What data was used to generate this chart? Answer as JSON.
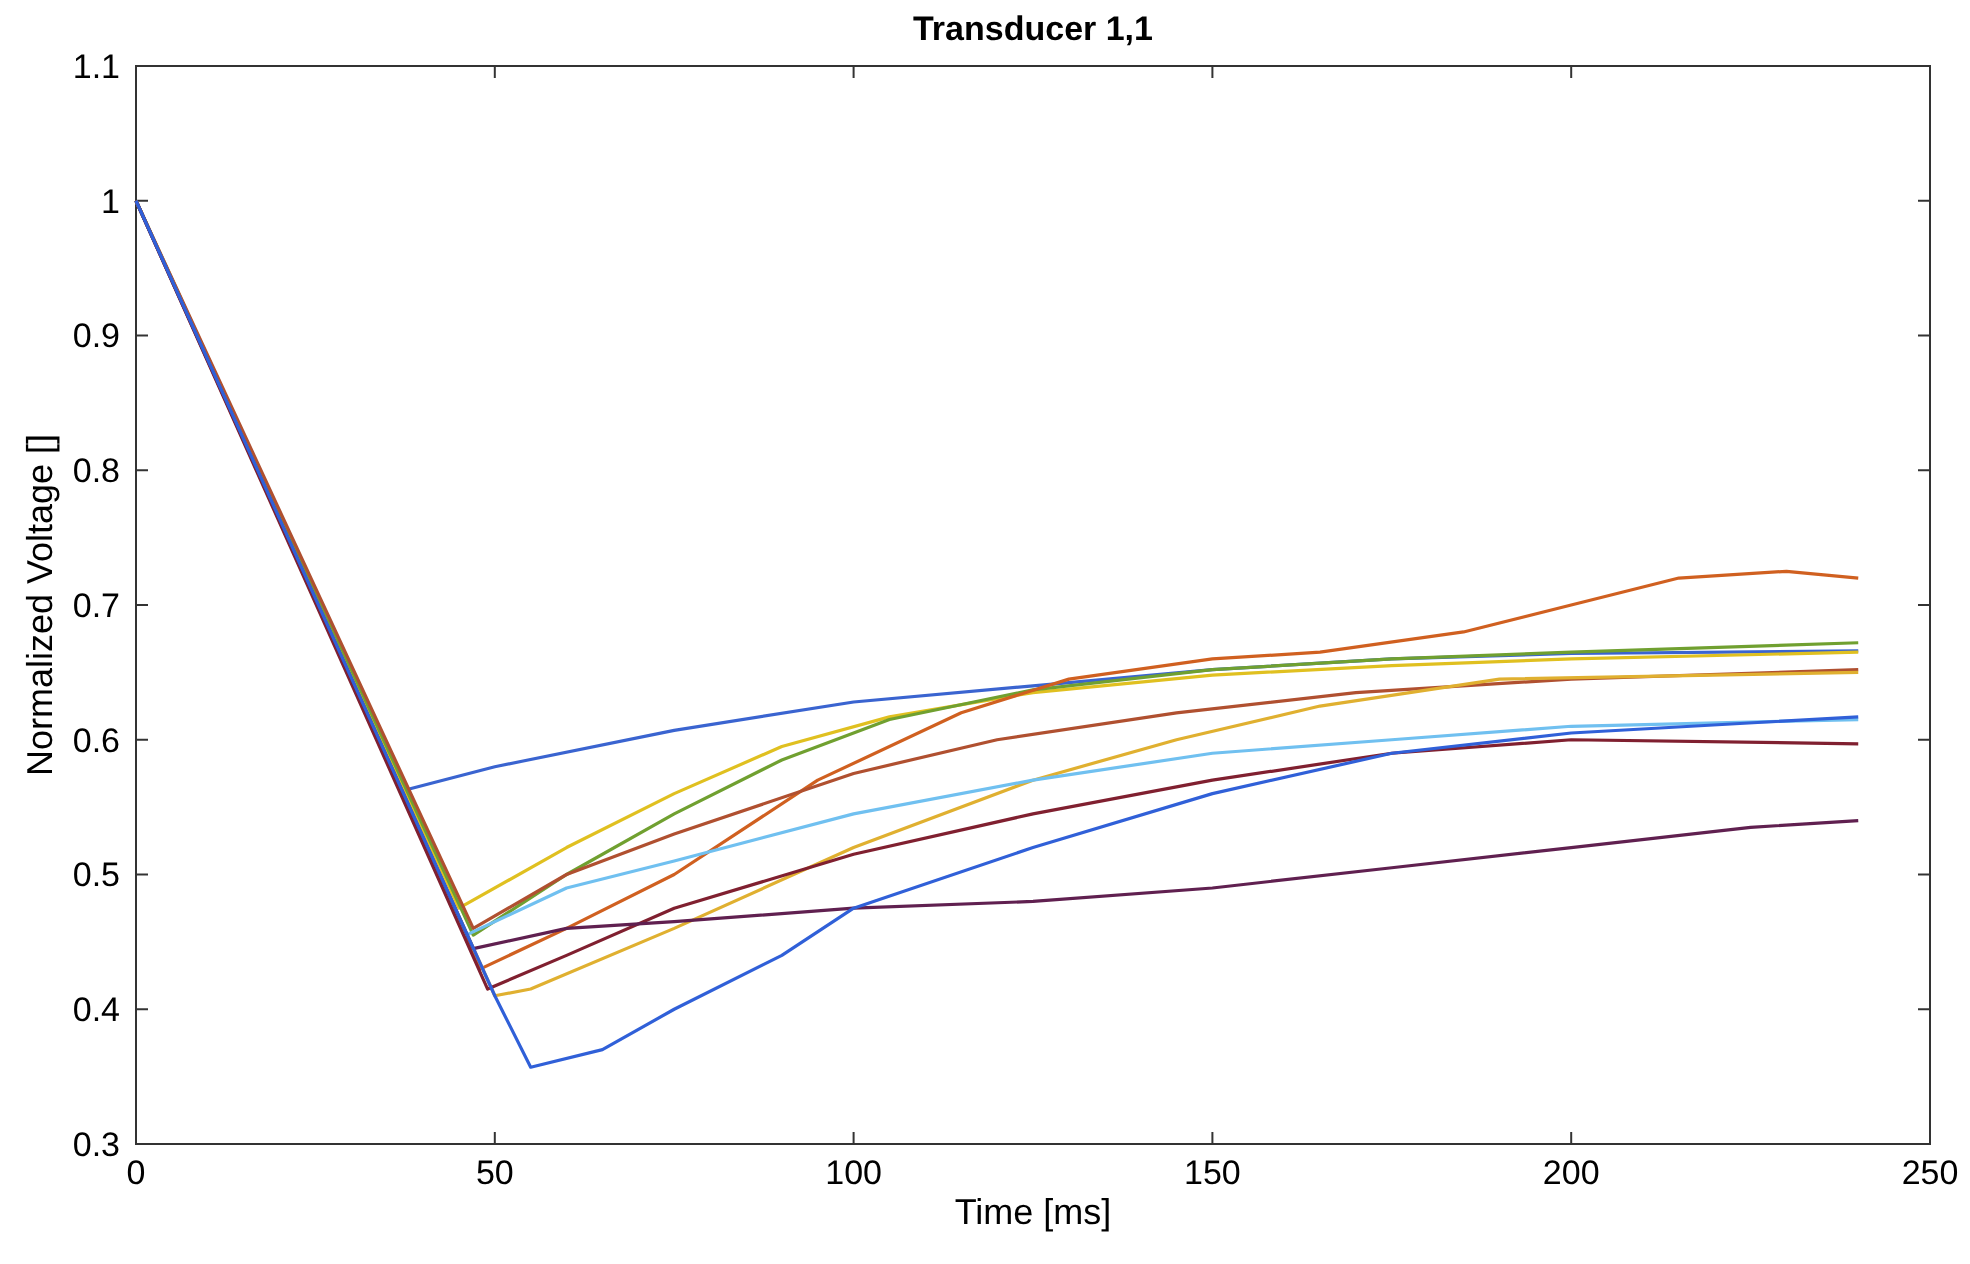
{
  "chart_data": {
    "type": "line",
    "title": "Transducer 1,1",
    "xlabel": "Time [ms]",
    "ylabel": "Normalized Voltage []",
    "xlim": [
      0,
      250
    ],
    "ylim": [
      0.3,
      1.1
    ],
    "xticks": [
      0,
      50,
      100,
      150,
      200,
      250
    ],
    "yticks": [
      0.3,
      0.4,
      0.5,
      0.6,
      0.7,
      0.8,
      0.9,
      1,
      1.1
    ],
    "grid": false,
    "line_style": "solid",
    "marker": "none",
    "series": [
      {
        "color": "#3a64d0",
        "x": [
          0,
          37,
          50,
          75,
          100,
          125,
          150,
          175,
          200,
          240
        ],
        "values": [
          1,
          0.562,
          0.58,
          0.607,
          0.628,
          0.64,
          0.652,
          0.66,
          0.664,
          0.666
        ]
      },
      {
        "color": "#e0c020",
        "x": [
          0,
          45,
          60,
          75,
          90,
          105,
          125,
          150,
          175,
          200,
          240
        ],
        "values": [
          1,
          0.475,
          0.52,
          0.56,
          0.595,
          0.617,
          0.635,
          0.648,
          0.655,
          0.66,
          0.665
        ]
      },
      {
        "color": "#70a030",
        "x": [
          0,
          47,
          60,
          75,
          90,
          105,
          125,
          150,
          175,
          200,
          240
        ],
        "values": [
          1,
          0.455,
          0.5,
          0.545,
          0.585,
          0.615,
          0.637,
          0.652,
          0.66,
          0.665,
          0.672
        ]
      },
      {
        "color": "#d06020",
        "x": [
          0,
          48,
          60,
          75,
          95,
          115,
          130,
          150,
          165,
          185,
          200,
          215,
          230,
          240
        ],
        "values": [
          1,
          0.43,
          0.46,
          0.5,
          0.57,
          0.62,
          0.645,
          0.66,
          0.665,
          0.68,
          0.7,
          0.72,
          0.725,
          0.72
        ]
      },
      {
        "color": "#b05030",
        "x": [
          0,
          47,
          60,
          75,
          100,
          120,
          145,
          170,
          200,
          240
        ],
        "values": [
          1,
          0.46,
          0.5,
          0.53,
          0.575,
          0.6,
          0.62,
          0.635,
          0.645,
          0.652
        ]
      },
      {
        "color": "#e0b030",
        "x": [
          0,
          50,
          55,
          75,
          100,
          125,
          145,
          165,
          190,
          240
        ],
        "values": [
          1,
          0.41,
          0.415,
          0.46,
          0.52,
          0.57,
          0.6,
          0.625,
          0.645,
          0.65
        ]
      },
      {
        "color": "#70c0f0",
        "x": [
          0,
          46,
          60,
          75,
          100,
          125,
          150,
          175,
          200,
          240
        ],
        "values": [
          1,
          0.455,
          0.49,
          0.51,
          0.545,
          0.57,
          0.59,
          0.6,
          0.61,
          0.615
        ]
      },
      {
        "color": "#802030",
        "x": [
          0,
          49,
          60,
          75,
          100,
          125,
          150,
          175,
          200,
          240
        ],
        "values": [
          1,
          0.415,
          0.44,
          0.475,
          0.515,
          0.545,
          0.57,
          0.59,
          0.6,
          0.597
        ]
      },
      {
        "color": "#602050",
        "x": [
          0,
          47,
          60,
          75,
          100,
          125,
          150,
          175,
          200,
          225,
          240
        ],
        "values": [
          1,
          0.445,
          0.46,
          0.465,
          0.475,
          0.48,
          0.49,
          0.505,
          0.52,
          0.535,
          0.54
        ]
      },
      {
        "color": "#3060d8",
        "x": [
          0,
          50,
          55,
          65,
          75,
          90,
          100,
          125,
          150,
          175,
          200,
          240
        ],
        "values": [
          1,
          0.41,
          0.357,
          0.37,
          0.4,
          0.44,
          0.475,
          0.52,
          0.56,
          0.59,
          0.605,
          0.617
        ]
      }
    ]
  }
}
